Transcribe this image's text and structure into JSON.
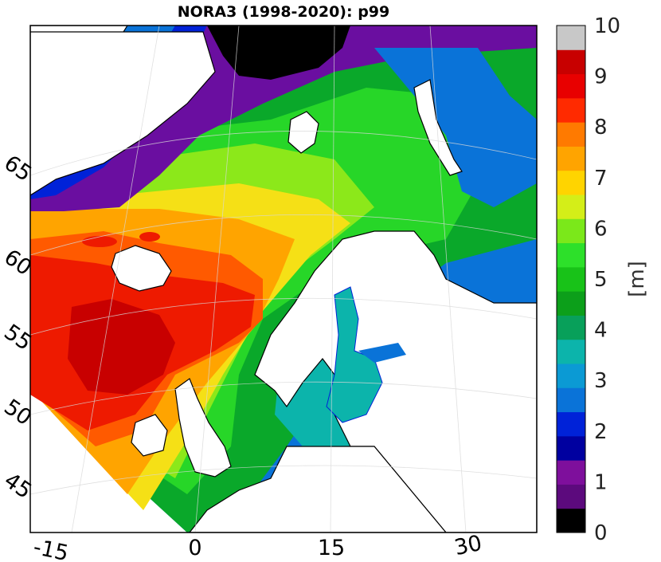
{
  "title": "NORA3 (1998-2020): p99",
  "colorbar": {
    "unit_label": "[m]",
    "range": [
      0,
      10
    ],
    "tick_labels": [
      "0",
      "1",
      "2",
      "3",
      "4",
      "5",
      "6",
      "7",
      "8",
      "9",
      "10"
    ],
    "colors": [
      "#000000",
      "#5c0a7d",
      "#7e0f9c",
      "#0000a0",
      "#0022d8",
      "#0a73d8",
      "#0b9ad4",
      "#0cb4ab",
      "#08a05a",
      "#0c9f1a",
      "#18c218",
      "#2de02a",
      "#7be81a",
      "#d4ee18",
      "#ffd400",
      "#ffa400",
      "#ff7a00",
      "#ff2a00",
      "#e80000",
      "#c80000",
      "#c8c8c8"
    ]
  },
  "map": {
    "longitude_labels": [
      "-15",
      "0",
      "15",
      "30"
    ],
    "latitude_labels": [
      "65",
      "60",
      "55",
      "50",
      "45"
    ],
    "ocean_level_colors": {
      "dark_red": "#c80000",
      "red": "#ee1a00",
      "orange_red": "#ff5a00",
      "orange": "#ffa400",
      "yellow": "#f5e016",
      "lime": "#8ce81a",
      "green": "#27d628",
      "dark_green": "#0aa82a",
      "teal": "#0cb4ab",
      "blue": "#0a73d8",
      "dark_blue": "#0022d8",
      "purple": "#6a0ea0",
      "sea_ice": "#000000",
      "land": "#ffffff",
      "coastline": "#000000"
    }
  }
}
